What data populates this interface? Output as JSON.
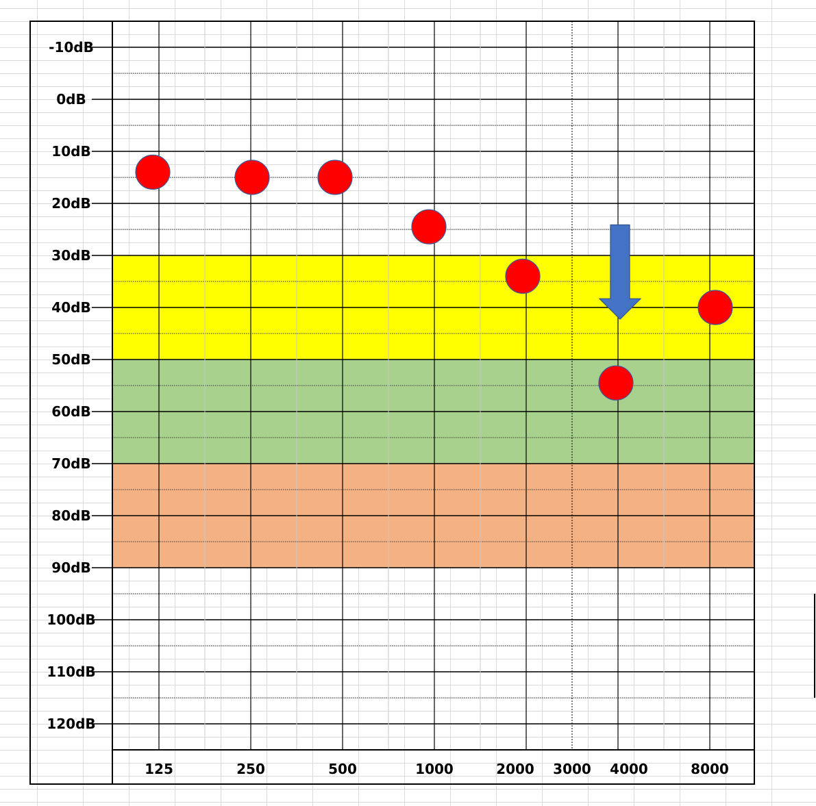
{
  "chart_data": {
    "type": "scatter",
    "title": "",
    "xlabel": "",
    "ylabel": "",
    "x_tick_labels": [
      "125",
      "250",
      "500",
      "1000",
      "2000",
      "3000",
      "4000",
      "8000"
    ],
    "y_tick_labels": [
      "-10dB",
      "0dB",
      "10dB",
      "20dB",
      "30dB",
      "40dB",
      "50dB",
      "60dB",
      "70dB",
      "80dB",
      "90dB",
      "100dB",
      "110dB",
      "120dB"
    ],
    "ylim": [
      -15,
      130
    ],
    "y_inverted": true,
    "grid": true,
    "bands": [
      {
        "from": 30,
        "to": 50,
        "color": "#ffff00"
      },
      {
        "from": 50,
        "to": 70,
        "color": "#a9d18e"
      },
      {
        "from": 70,
        "to": 90,
        "color": "#f4b183"
      }
    ],
    "series": [
      {
        "marker": "circle",
        "color": "#ff0000",
        "points": [
          {
            "x": "125",
            "y": 14
          },
          {
            "x": "250",
            "y": 15
          },
          {
            "x": "500",
            "y": 15
          },
          {
            "x": "1000",
            "y": 24.5
          },
          {
            "x": "2000",
            "y": 34
          },
          {
            "x": "4000",
            "y": 54.5
          },
          {
            "x": "8000",
            "y": 40
          }
        ]
      }
    ],
    "annotations": [
      {
        "type": "arrow-down",
        "x": "4000",
        "from_y": 24,
        "to_y": 42,
        "color": "#4472c4"
      }
    ]
  }
}
